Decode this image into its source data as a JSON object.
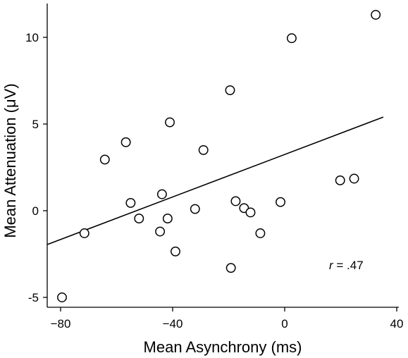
{
  "chart_data": {
    "type": "scatter",
    "title": "",
    "xlabel": "Mean Asynchrony (ms)",
    "ylabel": "Mean Attenuation (μV)",
    "xlim": [
      -86,
      40
    ],
    "ylim": [
      -5.7,
      11.8
    ],
    "x_ticks": [
      -80,
      -40,
      0,
      40
    ],
    "x_tick_labels": [
      "−80",
      "−40",
      "0",
      "40"
    ],
    "y_ticks": [
      10,
      5,
      0,
      -5
    ],
    "y_tick_labels": [
      "10",
      "5",
      "0",
      "-5"
    ],
    "grid": false,
    "legend": "none",
    "marker": "open-circle",
    "colors": {
      "ink": "#000000",
      "background": "#ffffff"
    },
    "points": [
      {
        "x": -79.5,
        "y": -5.0
      },
      {
        "x": -71.5,
        "y": -1.3
      },
      {
        "x": -64.2,
        "y": 2.95
      },
      {
        "x": -56.7,
        "y": 3.95
      },
      {
        "x": -55.0,
        "y": 0.45
      },
      {
        "x": -52.0,
        "y": -0.45
      },
      {
        "x": -44.5,
        "y": -1.2
      },
      {
        "x": -43.8,
        "y": 0.95
      },
      {
        "x": -41.8,
        "y": -0.45
      },
      {
        "x": -41.0,
        "y": 5.1
      },
      {
        "x": -39.0,
        "y": -2.35
      },
      {
        "x": -32.0,
        "y": 0.1
      },
      {
        "x": -29.0,
        "y": 3.5
      },
      {
        "x": -19.5,
        "y": 6.95
      },
      {
        "x": -19.2,
        "y": -3.3
      },
      {
        "x": -17.5,
        "y": 0.55
      },
      {
        "x": -14.5,
        "y": 0.15
      },
      {
        "x": -12.2,
        "y": -0.1
      },
      {
        "x": -8.7,
        "y": -1.3
      },
      {
        "x": -1.5,
        "y": 0.5
      },
      {
        "x": 2.5,
        "y": 9.95
      },
      {
        "x": 19.8,
        "y": 1.75
      },
      {
        "x": 24.8,
        "y": 1.85
      },
      {
        "x": 32.5,
        "y": 11.3
      }
    ],
    "fit_line": {
      "x": [
        -86,
        35.2
      ],
      "y": [
        -1.95,
        5.4
      ]
    },
    "annotation": {
      "r_symbol": "r",
      "r_value": " = .47"
    }
  }
}
